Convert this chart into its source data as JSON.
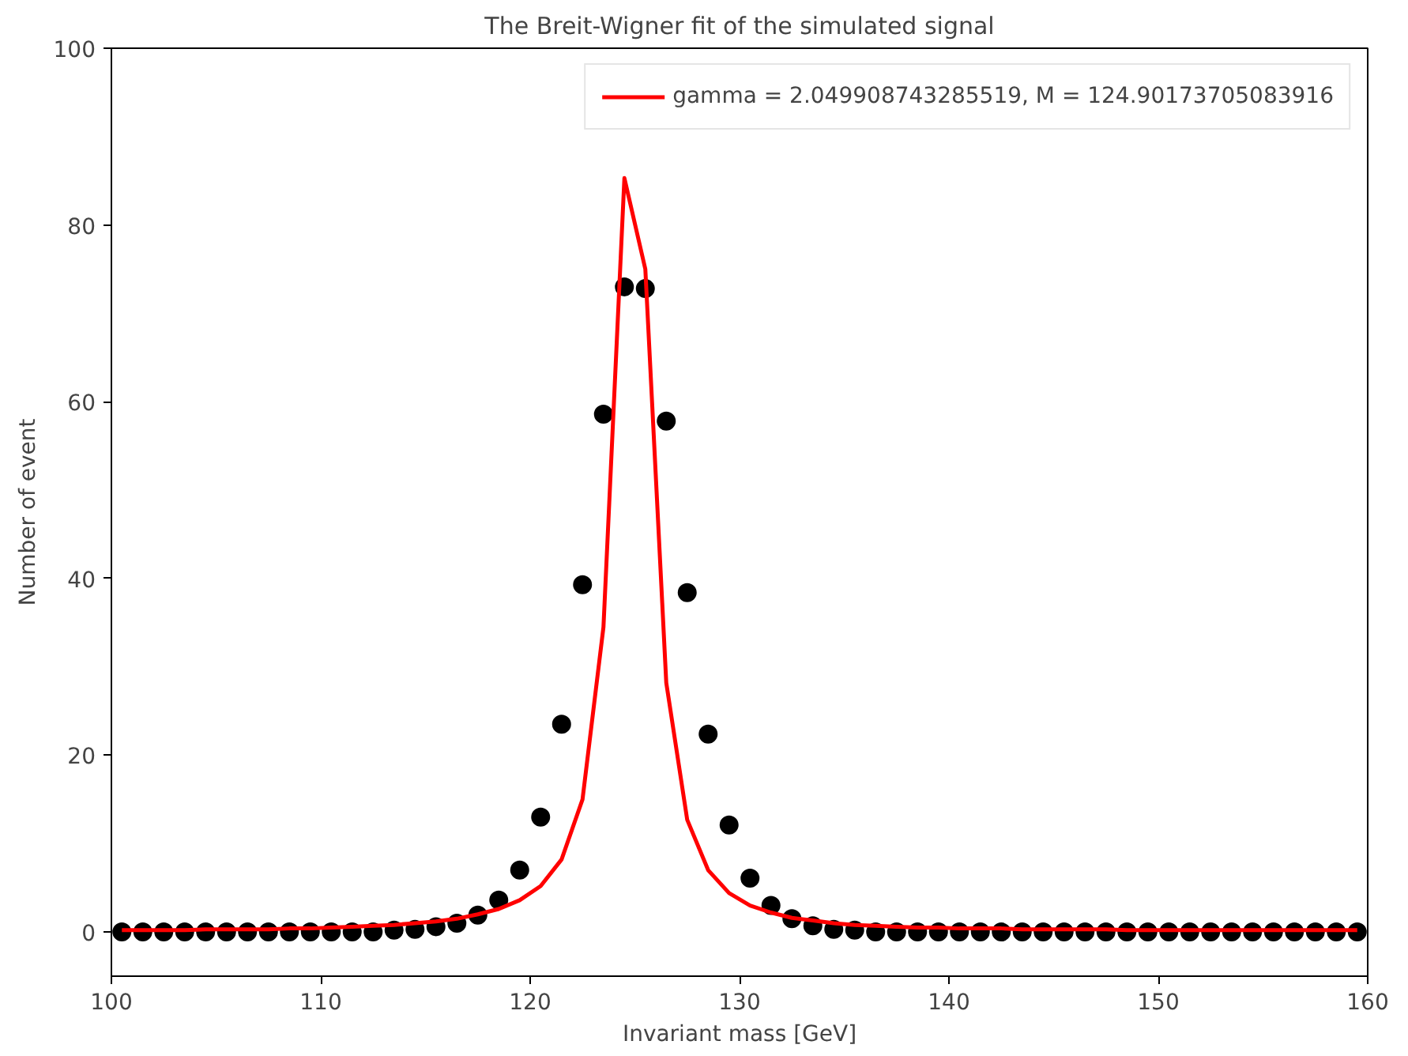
{
  "chart_data": {
    "type": "scatter",
    "title": "The Breit-Wigner fit of the simulated signal",
    "xlabel": "Invariant mass [GeV]",
    "ylabel": "Number of event",
    "x": [
      100.5,
      101.5,
      102.5,
      103.5,
      104.5,
      105.5,
      106.5,
      107.5,
      108.5,
      109.5,
      110.5,
      111.5,
      112.5,
      113.5,
      114.5,
      115.5,
      116.5,
      117.5,
      118.5,
      119.5,
      120.5,
      121.5,
      122.5,
      123.5,
      124.5,
      125.5,
      126.5,
      127.5,
      128.5,
      129.5,
      130.5,
      131.5,
      132.5,
      133.5,
      134.5,
      135.5,
      136.5,
      137.5,
      138.5,
      139.5,
      140.5,
      141.5,
      142.5,
      143.5,
      144.5,
      145.5,
      146.5,
      147.5,
      148.5,
      149.5,
      150.5,
      151.5,
      152.5,
      153.5,
      154.5,
      155.5,
      156.5,
      157.5,
      158.5,
      159.5
    ],
    "series": [
      {
        "color": "#000000",
        "marker": "circle",
        "values": [
          0,
          0,
          0,
          0,
          0,
          0,
          0,
          0,
          0,
          0,
          0,
          0,
          0,
          0.2,
          0.3,
          0.6,
          1.0,
          1.9,
          3.6,
          7,
          13,
          23.5,
          39.3,
          58.6,
          73,
          72.8,
          57.8,
          38.4,
          22.4,
          12.1,
          6.1,
          3,
          1.5,
          0.7,
          0.3,
          0.2,
          0,
          0,
          0,
          0,
          0,
          0,
          0,
          0,
          0,
          0,
          0,
          0,
          0,
          0,
          0,
          0,
          0,
          0,
          0,
          0,
          0,
          0,
          0,
          0
        ]
      },
      {
        "type": "line",
        "name": "gamma = 2.049908743285519, M = 124.90173705083916",
        "color": "#ff0000",
        "marker": "none",
        "values": [
          0.2,
          0.2,
          0.2,
          0.2,
          0.3,
          0.3,
          0.3,
          0.3,
          0.4,
          0.4,
          0.5,
          0.6,
          0.7,
          0.8,
          1,
          1.2,
          1.5,
          2,
          2.6,
          3.6,
          5.2,
          8.2,
          15,
          34.5,
          85.3,
          75,
          28.2,
          12.7,
          7,
          4.4,
          3,
          2.2,
          1.6,
          1.3,
          1,
          0.8,
          0.7,
          0.6,
          0.5,
          0.5,
          0.4,
          0.4,
          0.4,
          0.3,
          0.3,
          0.3,
          0.3,
          0.3,
          0.2,
          0.2,
          0.2,
          0.2,
          0.2,
          0.2,
          0.2,
          0.2,
          0.2,
          0.2,
          0.2,
          0.2
        ]
      }
    ],
    "xlim": [
      100,
      160
    ],
    "xticks": [
      100,
      110,
      120,
      130,
      140,
      150,
      160
    ],
    "ylim": [
      -5,
      100
    ],
    "yticks": [
      0,
      20,
      40,
      60,
      80,
      100
    ],
    "grid": false,
    "legend": "top right"
  }
}
